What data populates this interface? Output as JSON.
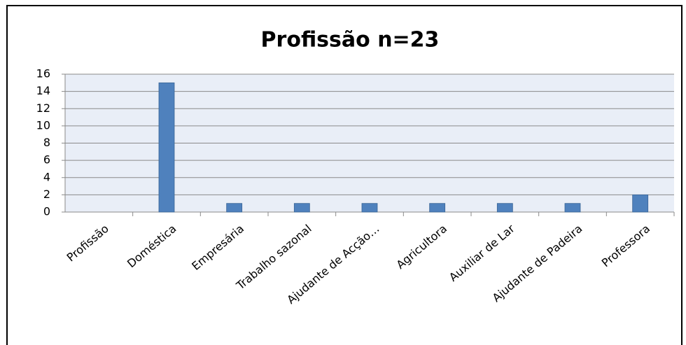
{
  "chart_data": {
    "type": "bar",
    "title": "Profissão n=23",
    "categories": [
      "Profissão",
      "Doméstica",
      "Empresária",
      "Trabalho sazonal",
      "Ajudante de Acção…",
      "Agricultora",
      "Auxiliar de Lar",
      "Ajudante de Padeira",
      "Professora"
    ],
    "values": [
      0,
      15,
      1,
      1,
      1,
      1,
      1,
      1,
      2
    ],
    "color": "#4f81bd",
    "ylim": [
      0,
      16
    ],
    "yticks": [
      0,
      2,
      4,
      6,
      8,
      10,
      12,
      14,
      16
    ],
    "grid": true
  }
}
